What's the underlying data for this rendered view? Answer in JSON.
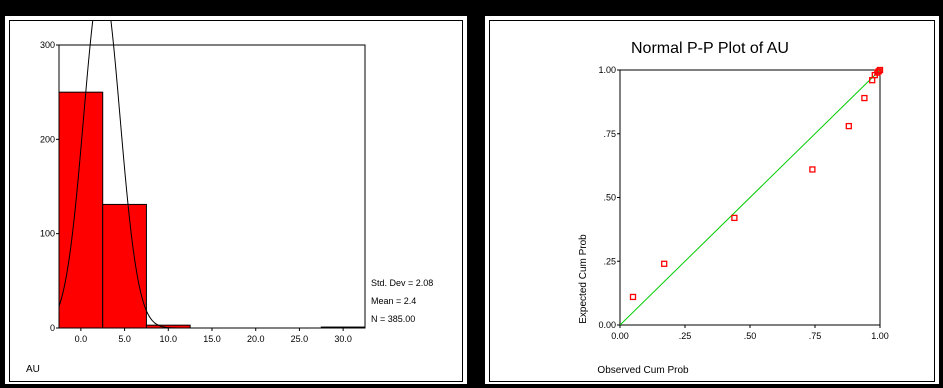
{
  "chart_data": [
    {
      "type": "bar",
      "title": "",
      "xlabel": "AU",
      "ylabel": "",
      "x_ticks": [
        "0.0",
        "5.0",
        "10.0",
        "15.0",
        "20.0",
        "25.0",
        "30.0"
      ],
      "y_ticks": [
        "0",
        "100",
        "200",
        "300"
      ],
      "ylim": [
        0,
        300
      ],
      "xlim": [
        -2.5,
        32.5
      ],
      "bins": [
        {
          "start": -2.5,
          "end": 2.5,
          "count": 250
        },
        {
          "start": 2.5,
          "end": 7.5,
          "count": 131
        },
        {
          "start": 7.5,
          "end": 12.5,
          "count": 3
        },
        {
          "start": 27.5,
          "end": 32.5,
          "count": 1
        }
      ],
      "normal_curve": {
        "mean": 2.4,
        "std": 2.08,
        "n": 385,
        "bin_width": 5
      },
      "stats": [
        "Std. Dev = 2.08",
        "Mean = 2.4",
        "N = 385.00"
      ],
      "colors": {
        "bar": "#ff0000",
        "curve": "#000000"
      }
    },
    {
      "type": "scatter",
      "title": "Normal P-P Plot of AU",
      "xlabel": "Observed Cum Prob",
      "ylabel": "Expected Cum Prob",
      "x_ticks": [
        "0.00",
        ".25",
        ".50",
        ".75",
        "1.00"
      ],
      "y_ticks": [
        "0.00",
        ".25",
        ".50",
        ".75",
        "1.00"
      ],
      "xlim": [
        0,
        1
      ],
      "ylim": [
        0,
        1
      ],
      "points": [
        [
          0.05,
          0.11
        ],
        [
          0.17,
          0.24
        ],
        [
          0.44,
          0.42
        ],
        [
          0.74,
          0.61
        ],
        [
          0.88,
          0.78
        ],
        [
          0.94,
          0.89
        ],
        [
          0.97,
          0.96
        ],
        [
          0.98,
          0.98
        ],
        [
          0.99,
          0.99
        ],
        [
          0.995,
          0.995
        ],
        [
          1.0,
          1.0
        ]
      ],
      "reference_line": [
        [
          0,
          0
        ],
        [
          1,
          1
        ]
      ],
      "colors": {
        "points": "#ff0000",
        "line": "#00cc00"
      }
    }
  ]
}
